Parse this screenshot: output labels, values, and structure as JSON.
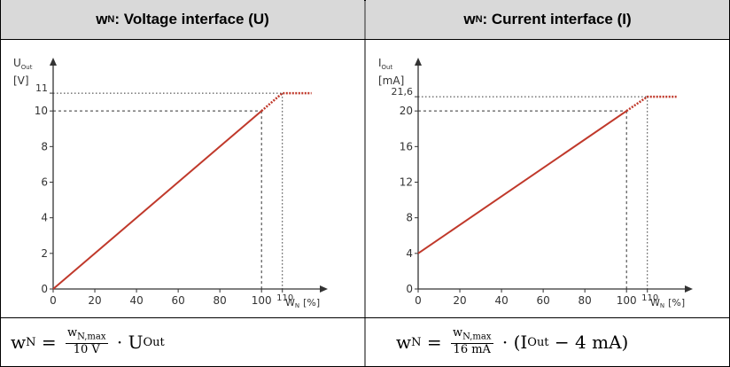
{
  "header": {
    "left": {
      "w": "w",
      "sub": "N",
      "rest": ": Voltage interface (U)"
    },
    "right": {
      "w": "w",
      "sub": "N",
      "rest": ": Current interface (I)"
    }
  },
  "colors": {
    "line": "#c0392b",
    "header_bg": "#d9d9d9",
    "border": "#000000",
    "axis": "#333333",
    "guide": "#333333"
  },
  "chart_data": [
    {
      "type": "line",
      "title": "",
      "ylabel_main": "U",
      "ylabel_sub": "Out",
      "yunit": "[V]",
      "xlabel_main": "W",
      "xlabel_sub": "N",
      "xunit": "[%]",
      "xticks": [
        "0",
        "20",
        "40",
        "60",
        "80",
        "100",
        "110"
      ],
      "yticks": [
        "0",
        "2",
        "4",
        "6",
        "8",
        "10",
        "11"
      ],
      "xlim": [
        0,
        125
      ],
      "ylim": [
        0,
        12
      ],
      "series": [
        {
          "style": "solid",
          "x": [
            0,
            100
          ],
          "y": [
            0,
            10
          ]
        },
        {
          "style": "dotted",
          "x": [
            100,
            110,
            124
          ],
          "y": [
            10,
            11,
            11
          ]
        }
      ],
      "guides": [
        {
          "x": 100,
          "y": 10,
          "style": "dashed"
        },
        {
          "x": 110,
          "y": 11,
          "style": "dotted"
        }
      ]
    },
    {
      "type": "line",
      "title": "",
      "ylabel_main": "I",
      "ylabel_sub": "Out",
      "yunit": "[mA]",
      "xlabel_main": "W",
      "xlabel_sub": "N",
      "xunit": "[%]",
      "xticks": [
        "0",
        "20",
        "40",
        "60",
        "80",
        "100",
        "110"
      ],
      "yticks": [
        "0",
        "4",
        "8",
        "12",
        "16",
        "20",
        "21,6"
      ],
      "xlim": [
        0,
        125
      ],
      "ylim": [
        0,
        24
      ],
      "series": [
        {
          "style": "solid",
          "x": [
            0,
            100
          ],
          "y": [
            4,
            20
          ]
        },
        {
          "style": "dotted",
          "x": [
            100,
            110,
            124
          ],
          "y": [
            20,
            21.6,
            21.6
          ]
        }
      ],
      "guides": [
        {
          "x": 100,
          "y": 20,
          "style": "dashed"
        },
        {
          "x": 110,
          "y": 21.6,
          "style": "dotted"
        }
      ]
    }
  ],
  "formulas": {
    "left": {
      "lhs": "w",
      "lhs_sub": "N",
      "eq": " = ",
      "num": "w",
      "num_sub": "N,max",
      "den": "10 V",
      "dot": " · ",
      "rhs": "U",
      "rhs_sub": "Out",
      "tail": ""
    },
    "right": {
      "lhs": "w",
      "lhs_sub": "N",
      "eq": " = ",
      "num": "w",
      "num_sub": "N,max",
      "den": "16 mA",
      "dot": " · (",
      "rhs": "I",
      "rhs_sub": "Out",
      "tail": " − 4 mA)"
    }
  }
}
